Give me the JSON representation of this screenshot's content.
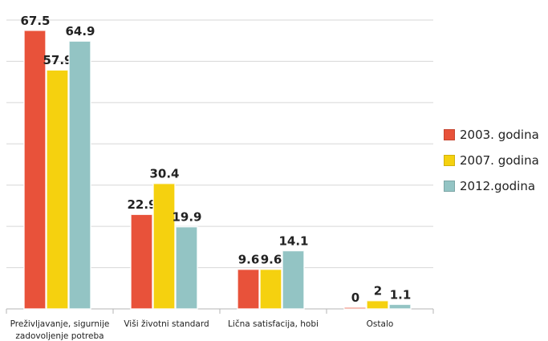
{
  "chart_data": {
    "type": "bar",
    "categories": [
      [
        "Preživljavanje, sigurnije",
        "zadovoljenje potreba"
      ],
      [
        "Viši životni standard"
      ],
      [
        "Lična satisfacija, hobi"
      ],
      [
        "Ostalo"
      ]
    ],
    "series": [
      {
        "name": "2003. godina",
        "values": [
          67.5,
          22.9,
          9.6,
          0
        ],
        "value_labels": [
          "67.5",
          "22.9",
          "9.6",
          "0"
        ],
        "color": "#e8523a"
      },
      {
        "name": "2007. godina",
        "values": [
          57.9,
          30.4,
          9.6,
          2
        ],
        "value_labels": [
          "57.9",
          "30.4",
          "9.6",
          "2"
        ],
        "color": "#f5d10f"
      },
      {
        "name": "2012.godina",
        "values": [
          64.9,
          19.9,
          14.1,
          1.1
        ],
        "value_labels": [
          "64.9",
          "19.9",
          "14.1",
          "1.1"
        ],
        "color": "#93c4c4"
      }
    ],
    "ylim": [
      0,
      70
    ],
    "grid": true,
    "legend_position": "right"
  },
  "colors": {
    "grid": "#d7d7d7",
    "axis": "#b5b5b5",
    "text": "#222222"
  }
}
